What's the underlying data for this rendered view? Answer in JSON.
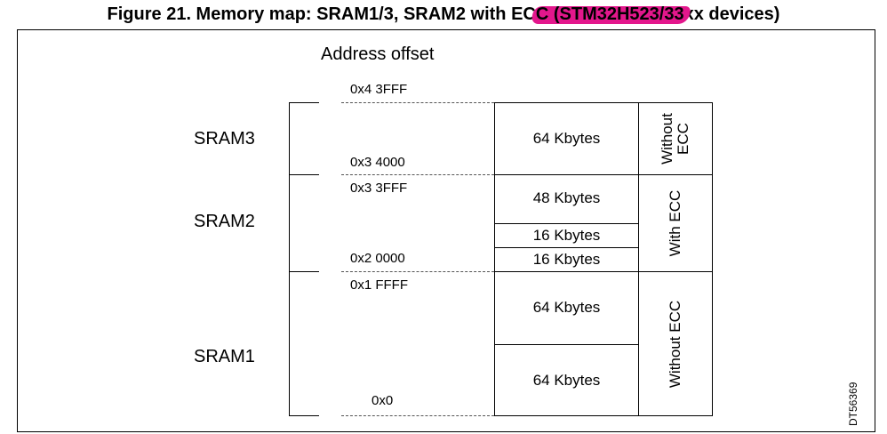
{
  "title": {
    "prefix": "Figure 21. Memory map: SRAM1/3, SRAM2 with EC",
    "highlighted": "C (STM32H523/33",
    "suffix": "xx devices)"
  },
  "address_offset_label": "Address offset",
  "addresses": [
    "0x4 3FFF",
    "0x3 4000",
    "0x3 3FFF",
    "0x2 0000",
    "0x1 FFFF",
    "0x0"
  ],
  "regions": {
    "sram3": "SRAM3",
    "sram2": "SRAM2",
    "sram1": "SRAM1"
  },
  "blocks": [
    "64 Kbytes",
    "48 Kbytes",
    "16 Kbytes",
    "16 Kbytes",
    "64 Kbytes",
    "64 Kbytes"
  ],
  "ecc_labels": {
    "sram3_line1": "Without",
    "sram3_line2": "ECC",
    "sram2": "With ECC",
    "sram1": "Without ECC"
  },
  "diagram_id": "DT56369",
  "colors": {
    "highlight": "#e3178c"
  }
}
